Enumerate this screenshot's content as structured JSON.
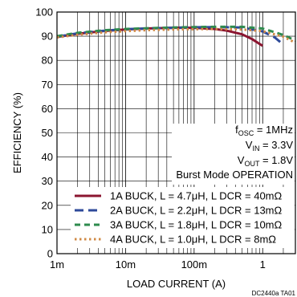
{
  "chart_data": {
    "type": "line",
    "title": "",
    "xlabel": "LOAD CURRENT (A)",
    "ylabel": "EFFICIENCY (%)",
    "xscale": "log",
    "xlim": [
      0.001,
      3
    ],
    "ylim": [
      0,
      100
    ],
    "grid": true,
    "x_ticks": [
      {
        "value": 0.001,
        "label": "1m"
      },
      {
        "value": 0.01,
        "label": "10m"
      },
      {
        "value": 0.1,
        "label": "100m"
      },
      {
        "value": 1,
        "label": "1"
      }
    ],
    "y_ticks": [
      0,
      10,
      20,
      30,
      40,
      50,
      60,
      70,
      80,
      90,
      100
    ],
    "annotations": {
      "fosc": {
        "main": "f",
        "sub": "OSC",
        "rest": " = 1MHz"
      },
      "vin": {
        "main": "V",
        "sub": "IN",
        "rest": " = 3.3V"
      },
      "vout": {
        "main": "V",
        "sub": "OUT",
        "rest": " = 1.8V"
      },
      "mode": "Burst Mode OPERATION"
    },
    "legend_position": "bottom-right",
    "series": [
      {
        "name": "1A BUCK, L = 4.7μH, L DCR = 40mΩ",
        "color": "#8b1530",
        "dash": "solid",
        "x": [
          0.001,
          0.002,
          0.005,
          0.01,
          0.02,
          0.05,
          0.1,
          0.2,
          0.3,
          0.5,
          0.7,
          1.0
        ],
        "values": [
          89.7,
          91.0,
          92.2,
          92.8,
          93.2,
          93.5,
          93.5,
          93.0,
          92.3,
          90.8,
          88.8,
          86.0
        ]
      },
      {
        "name": "2A BUCK, L = 2.2μH, L DCR = 13mΩ",
        "color": "#2e4a9a",
        "dash": "long",
        "x": [
          0.001,
          0.002,
          0.005,
          0.01,
          0.02,
          0.05,
          0.1,
          0.2,
          0.5,
          1.0,
          1.5,
          2.0
        ],
        "values": [
          89.8,
          91.2,
          92.3,
          92.9,
          93.2,
          93.5,
          93.7,
          93.8,
          93.6,
          92.0,
          89.5,
          86.5
        ]
      },
      {
        "name": "3A BUCK, L = 1.8μH, L DCR = 10mΩ",
        "color": "#2e8b4e",
        "dash": "medium",
        "x": [
          0.001,
          0.002,
          0.005,
          0.01,
          0.02,
          0.05,
          0.1,
          0.2,
          0.5,
          1.0,
          2.0,
          3.0
        ],
        "values": [
          90.0,
          91.4,
          92.5,
          93.0,
          93.3,
          93.6,
          93.8,
          93.9,
          93.9,
          93.2,
          90.5,
          88.2
        ]
      },
      {
        "name": "4A BUCK, L = 1.0μH, L DCR = 8mΩ",
        "color": "#d08a45",
        "dash": "dotted",
        "x": [
          0.001,
          0.002,
          0.005,
          0.01,
          0.02,
          0.05,
          0.1,
          0.2,
          0.5,
          1.0,
          2.0,
          3.0
        ],
        "values": [
          89.5,
          90.6,
          91.6,
          92.1,
          92.5,
          92.8,
          92.9,
          93.0,
          92.8,
          92.1,
          89.8,
          87.3
        ]
      }
    ],
    "figure_code": "DC2440a TA01"
  }
}
